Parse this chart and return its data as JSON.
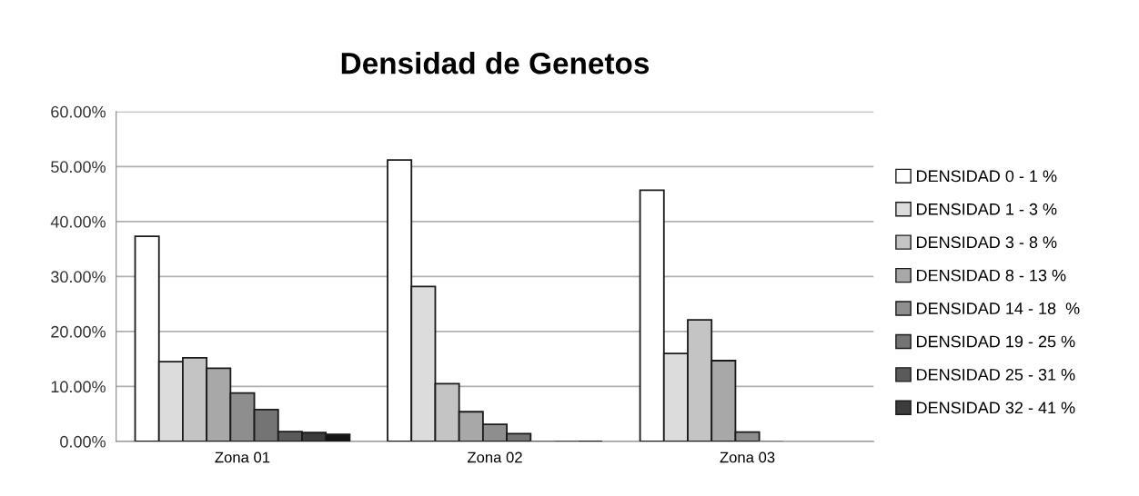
{
  "chart_data": {
    "type": "bar",
    "title": "Densidad de Genetos",
    "categories": [
      "Zona 01",
      "Zona 02",
      "Zona 03"
    ],
    "series": [
      {
        "name": "DENSIDAD 0 - 1 %",
        "color": "#ffffff",
        "values": [
          37.3,
          51.2,
          45.7
        ]
      },
      {
        "name": "DENSIDAD 1 - 3 %",
        "color": "#dcdcdc",
        "values": [
          14.5,
          28.2,
          16.0
        ]
      },
      {
        "name": "DENSIDAD 3 - 8 %",
        "color": "#c4c4c4",
        "values": [
          15.2,
          10.5,
          22.1
        ]
      },
      {
        "name": "DENSIDAD 8 - 13 %",
        "color": "#a8a8a8",
        "values": [
          13.3,
          5.4,
          14.7
        ]
      },
      {
        "name": "DENSIDAD 14 - 18  %",
        "color": "#8e8e8e",
        "values": [
          8.8,
          3.1,
          1.7
        ]
      },
      {
        "name": "DENSIDAD 19 - 25 %",
        "color": "#747474",
        "values": [
          5.8,
          1.4,
          0
        ]
      },
      {
        "name": "DENSIDAD 25 - 31 %",
        "color": "#5a5a5a",
        "values": [
          1.8,
          0,
          null
        ]
      },
      {
        "name": "DENSIDAD 32 - 41 %",
        "color": "#3c3c3c",
        "values": [
          1.6,
          0,
          null
        ]
      },
      {
        "color": "#141414",
        "values": [
          1.3,
          0,
          null
        ]
      }
    ],
    "ylim": [
      0,
      60
    ],
    "yticks": [
      {
        "value": 0,
        "label": "0.00%"
      },
      {
        "value": 10,
        "label": "10.00%"
      },
      {
        "value": 20,
        "label": "20.00%"
      },
      {
        "value": 30,
        "label": "30.00%"
      },
      {
        "value": 40,
        "label": "40.00%"
      },
      {
        "value": 50,
        "label": "50.00%"
      },
      {
        "value": 60,
        "label": "60.00%"
      }
    ],
    "grid": "y",
    "legend": "right"
  }
}
